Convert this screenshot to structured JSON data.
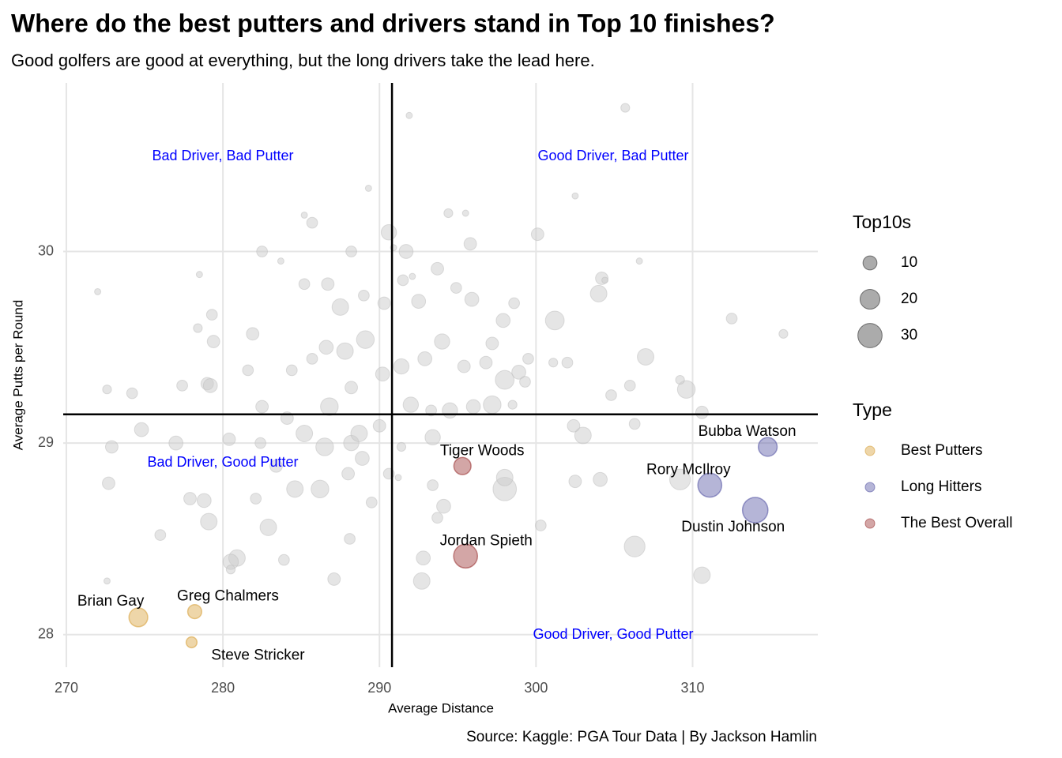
{
  "chart_data": {
    "type": "scatter",
    "title": "Where do the best putters and drivers stand in Top 10 finishes?",
    "subtitle": "Good golfers are good at everything, but the long drivers take the lead here.",
    "caption": "Source: Kaggle: PGA Tour Data | By Jackson Hamlin",
    "x_label": "Average Distance",
    "y_label": "Average Putts per Round",
    "xlim": [
      269.8,
      318.0
    ],
    "ylim": [
      27.83,
      30.88
    ],
    "xticks": [
      270,
      280,
      290,
      300,
      310
    ],
    "yticks": [
      28,
      29,
      30
    ],
    "grid": true,
    "vline": 290.8,
    "hline": 29.15,
    "annotations": [
      "Bad Driver, Bad Putter",
      "Good Driver, Bad Putter",
      "Bad Driver, Good Putter",
      "Good Driver, Good Putter"
    ],
    "size_legend": {
      "title": "Top10s",
      "values": [
        10,
        20,
        30
      ]
    },
    "color_legend_title": "Type",
    "background_points": {
      "color": "#cccccc",
      "x": [
        305.7,
        291.9,
        289.3,
        302.5,
        290.6,
        300.1,
        285.7,
        282.5,
        272.0,
        278.5,
        287.5,
        293.7,
        295.8,
        304.2,
        304.0,
        312.5,
        315.8,
        301.2,
        307.0,
        309.6,
        309.2,
        310.6,
        306.3,
        303.0,
        302.4,
        304.1,
        309.2,
        310.6,
        306.3,
        300.3,
        298.0,
        298.0,
        292.7,
        292.8,
        294.1,
        293.7,
        293.4,
        293.4,
        291.4,
        290.6,
        288.9,
        288.2,
        286.5,
        284.6,
        282.9,
        280.9,
        280.5,
        279.1,
        278.8,
        276.0,
        272.7,
        272.9,
        274.8,
        274.2,
        272.6,
        278.4,
        279.3,
        279.4,
        281.9,
        279.0,
        277.4,
        282.5,
        284.1,
        285.2,
        286.8,
        288.2,
        289.1,
        287.8,
        286.6,
        285.7,
        284.4,
        281.6,
        290.2,
        291.4,
        292.9,
        294.0,
        295.4,
        296.8,
        298.0,
        298.9,
        299.5,
        297.2,
        297.9,
        298.6,
        295.9,
        294.9,
        291.5,
        292.1,
        292.5,
        290.3,
        289.0,
        288.2,
        290.9,
        291.7,
        286.7,
        285.2,
        283.7,
        292.0,
        294.5,
        296.0,
        297.2,
        293.3,
        290.0,
        288.7,
        288.0,
        286.2,
        283.4,
        282.4,
        280.4,
        277.0,
        277.9,
        282.1,
        283.9,
        287.1,
        288.1,
        289.5,
        291.2,
        279.2,
        280.5,
        272.6,
        295.5,
        294.4,
        285.2,
        302.0,
        301.1,
        304.4,
        306.6,
        299.3,
        298.5,
        302.5,
        304.8,
        306.0
      ],
      "y": [
        30.75,
        30.71,
        30.33,
        30.29,
        30.1,
        30.09,
        30.15,
        30.0,
        29.79,
        29.88,
        29.71,
        29.91,
        30.04,
        29.86,
        29.78,
        29.65,
        29.57,
        29.64,
        29.45,
        29.28,
        29.33,
        29.16,
        29.1,
        29.04,
        29.09,
        28.81,
        28.81,
        28.31,
        28.46,
        28.57,
        28.76,
        28.82,
        28.28,
        28.4,
        28.67,
        28.61,
        28.78,
        29.03,
        28.98,
        28.84,
        28.92,
        29.0,
        28.98,
        28.76,
        28.56,
        28.4,
        28.38,
        28.59,
        28.7,
        28.52,
        28.79,
        28.98,
        29.07,
        29.26,
        29.28,
        29.6,
        29.67,
        29.53,
        29.57,
        29.31,
        29.3,
        29.19,
        29.13,
        29.05,
        29.19,
        29.29,
        29.54,
        29.48,
        29.5,
        29.44,
        29.38,
        29.38,
        29.36,
        29.4,
        29.44,
        29.53,
        29.4,
        29.42,
        29.33,
        29.37,
        29.44,
        29.52,
        29.64,
        29.73,
        29.75,
        29.81,
        29.85,
        29.87,
        29.74,
        29.73,
        29.77,
        30.0,
        30.02,
        30.0,
        29.83,
        29.83,
        29.95,
        29.2,
        29.17,
        29.19,
        29.2,
        29.17,
        29.09,
        29.05,
        28.84,
        28.76,
        28.88,
        29.0,
        29.02,
        29.0,
        28.71,
        28.71,
        28.39,
        28.29,
        28.5,
        28.69,
        28.82,
        29.3,
        28.34,
        28.28,
        30.2,
        30.2,
        30.19,
        29.42,
        29.42,
        29.85,
        29.95,
        29.32,
        29.2,
        28.8,
        29.25,
        29.3
      ],
      "sizes": [
        4,
        2,
        2,
        2,
        12,
        8,
        6,
        6,
        2,
        2,
        14,
        8,
        8,
        8,
        14,
        6,
        4,
        18,
        14,
        16,
        4,
        8,
        6,
        14,
        8,
        10,
        22,
        14,
        22,
        6,
        28,
        14,
        14,
        10,
        10,
        6,
        6,
        12,
        4,
        6,
        10,
        12,
        16,
        14,
        14,
        14,
        12,
        14,
        10,
        6,
        8,
        8,
        10,
        6,
        4,
        4,
        6,
        8,
        8,
        8,
        6,
        8,
        8,
        14,
        16,
        8,
        16,
        14,
        10,
        6,
        6,
        6,
        10,
        12,
        10,
        12,
        8,
        8,
        18,
        10,
        6,
        8,
        10,
        6,
        10,
        6,
        6,
        2,
        10,
        8,
        6,
        6,
        2,
        10,
        8,
        6,
        2,
        12,
        12,
        10,
        16,
        6,
        8,
        14,
        8,
        16,
        8,
        6,
        8,
        10,
        8,
        6,
        6,
        8,
        6,
        6,
        2,
        10,
        4,
        2,
        2,
        4,
        2,
        6,
        4,
        2,
        2,
        6,
        4,
        8,
        6,
        6
      ]
    },
    "series": [
      {
        "name": "Best Putters",
        "color": "#d9a441",
        "x": [
          274.6,
          278.2,
          278.0
        ],
        "y": [
          28.09,
          28.12,
          27.96
        ],
        "sizes": [
          18,
          10,
          6
        ],
        "labels": [
          "Brian Gay",
          "Greg Chalmers",
          "Steve Stricker"
        ]
      },
      {
        "name": "Long Hitters",
        "color": "#5a5aa6",
        "x": [
          314.8,
          311.1,
          314.0
        ],
        "y": [
          28.98,
          28.78,
          28.65
        ],
        "sizes": [
          18,
          29,
          33
        ],
        "labels": [
          "Bubba Watson",
          "Rory McIlroy",
          "Dustin Johnson"
        ]
      },
      {
        "name": "The Best Overall",
        "color": "#9e3a3a",
        "x": [
          295.3,
          295.5
        ],
        "y": [
          28.88,
          28.41
        ],
        "sizes": [
          15,
          29
        ],
        "labels": [
          "Tiger Woods",
          "Jordan Spieth"
        ]
      }
    ]
  }
}
